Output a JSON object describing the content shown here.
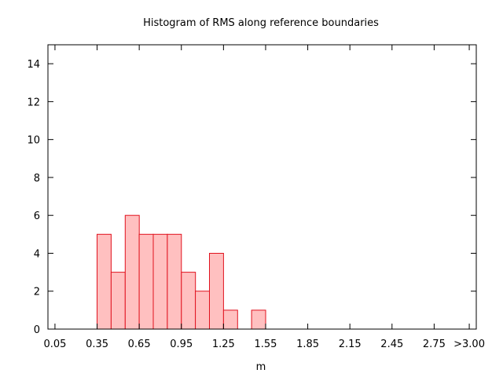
{
  "chart_data": {
    "type": "bar",
    "title": "Histogram of RMS along reference boundaries",
    "xlabel": "m",
    "ylabel": "",
    "x_range": [
      0.0,
      3.05
    ],
    "ylim": [
      0,
      15
    ],
    "bin_width": 0.1,
    "x_tick_values": [
      0.05,
      0.35,
      0.65,
      0.95,
      1.25,
      1.55,
      1.85,
      2.15,
      2.45,
      2.75,
      3.0
    ],
    "x_tick_labels": [
      "0.05",
      "0.35",
      "0.65",
      "0.95",
      "1.25",
      "1.55",
      "1.85",
      "2.15",
      "2.45",
      "2.75",
      ">3.00"
    ],
    "y_ticks": [
      0,
      2,
      4,
      6,
      8,
      10,
      12,
      14
    ],
    "bins": [
      {
        "start": 0.35,
        "count": 5
      },
      {
        "start": 0.45,
        "count": 3
      },
      {
        "start": 0.55,
        "count": 6
      },
      {
        "start": 0.65,
        "count": 5
      },
      {
        "start": 0.75,
        "count": 5
      },
      {
        "start": 0.85,
        "count": 5
      },
      {
        "start": 0.95,
        "count": 3
      },
      {
        "start": 1.05,
        "count": 2
      },
      {
        "start": 1.15,
        "count": 4
      },
      {
        "start": 1.25,
        "count": 1
      },
      {
        "start": 1.45,
        "count": 1
      }
    ],
    "grid": false,
    "colors": {
      "bar_fill": "#ffc0c0",
      "bar_stroke": "#e0121e",
      "axis": "#000000"
    }
  }
}
